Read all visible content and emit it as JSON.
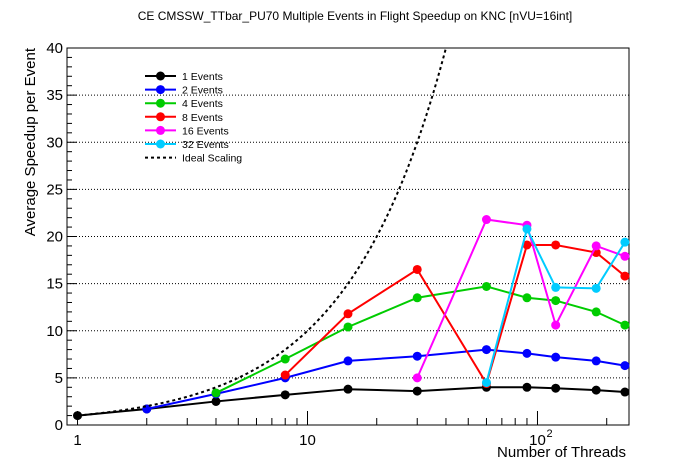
{
  "chart_data": {
    "type": "line",
    "title": "CE CMSSW_TTbar_PU70 Multiple Events in Flight Speedup on KNC [nVU=16int]",
    "xlabel": "Number of Threads",
    "ylabel": "Average Speedup per Event",
    "x_scale": "log",
    "xlim": [
      0.9,
      250
    ],
    "ylim": [
      0,
      40
    ],
    "y_ticks": [
      0,
      5,
      10,
      15,
      20,
      25,
      30,
      35,
      40
    ],
    "x_tick_labels": [
      {
        "value": 1,
        "label": "1"
      },
      {
        "value": 10,
        "label": "10"
      },
      {
        "value": 100,
        "label": "10",
        "exponent": "2"
      }
    ],
    "grid": "horizontal dotted",
    "legend_position": "top-left",
    "series": [
      {
        "name": "1 Events",
        "color": "#000000",
        "x": [
          1,
          2,
          4,
          8,
          15,
          30,
          60,
          90,
          120,
          180,
          240
        ],
        "y": [
          1.0,
          1.7,
          2.5,
          3.2,
          3.8,
          3.6,
          4.0,
          4.0,
          3.9,
          3.7,
          3.5
        ]
      },
      {
        "name": "2 Events",
        "color": "#0000ff",
        "x": [
          2,
          4,
          8,
          15,
          30,
          60,
          90,
          120,
          180,
          240
        ],
        "y": [
          1.7,
          3.3,
          5.0,
          6.8,
          7.3,
          8.0,
          7.6,
          7.2,
          6.8,
          6.3
        ]
      },
      {
        "name": "4 Events",
        "color": "#00cc00",
        "x": [
          4,
          8,
          15,
          30,
          60,
          90,
          120,
          180,
          240
        ],
        "y": [
          3.4,
          7.0,
          10.4,
          13.5,
          14.7,
          13.5,
          13.2,
          12.0,
          10.6
        ]
      },
      {
        "name": "8 Events",
        "color": "#ff0000",
        "x": [
          8,
          15,
          30,
          60,
          90,
          120,
          180,
          240
        ],
        "y": [
          5.3,
          11.8,
          16.5,
          4.4,
          19.1,
          19.1,
          18.3,
          15.8
        ]
      },
      {
        "name": "16 Events",
        "color": "#ff00ff",
        "x": [
          30,
          60,
          90,
          120,
          180,
          240
        ],
        "y": [
          5.0,
          21.8,
          21.2,
          10.6,
          19.0,
          17.9
        ]
      },
      {
        "name": "32 Events",
        "color": "#00ccff",
        "x": [
          60,
          90,
          120,
          180,
          240
        ],
        "y": [
          4.5,
          20.8,
          14.6,
          14.5,
          19.4
        ]
      },
      {
        "name": "Ideal Scaling",
        "color": "#000000",
        "style": "dotted",
        "x": [
          1,
          40
        ],
        "y": [
          1,
          40
        ]
      }
    ]
  }
}
